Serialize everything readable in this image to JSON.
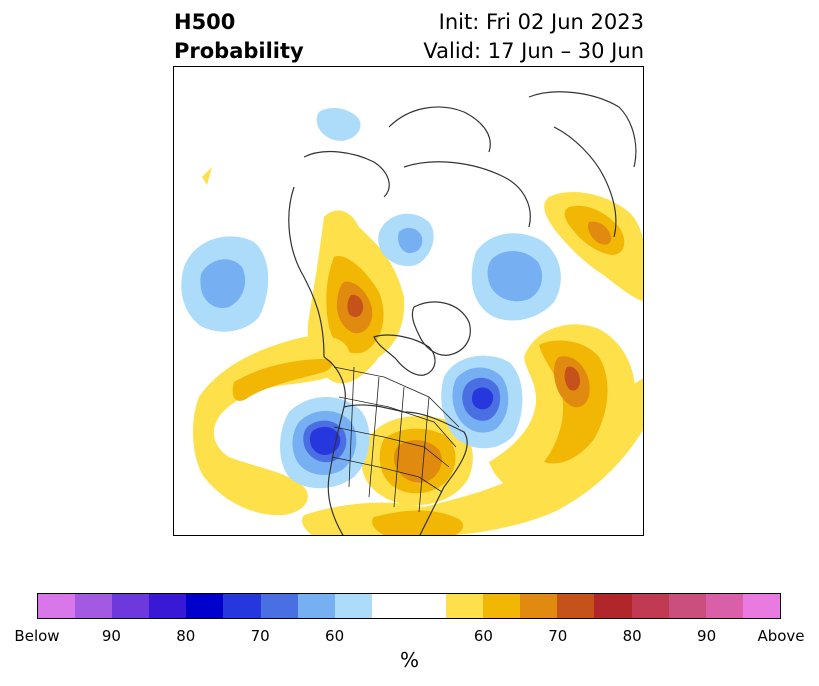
{
  "header": {
    "title_line1": "H500",
    "title_line2": "Probability",
    "init_text": "Init: Fri 02 Jun 2023",
    "valid_text": "Valid: 17 Jun – 30 Jun"
  },
  "map": {
    "projection": "north-polar-stereographic",
    "variable": "500 hPa height tercile probability",
    "anomalies": [
      {
        "sign": "above",
        "max_category": 70,
        "region": "Alaska / Yukon"
      },
      {
        "sign": "above",
        "max_category": 70,
        "region": "Great Lakes / Midwest US"
      },
      {
        "sign": "above",
        "max_category": 70,
        "region": "North Atlantic"
      },
      {
        "sign": "above",
        "max_category": 70,
        "region": "Eastern Siberia"
      },
      {
        "sign": "above",
        "max_category": 60,
        "region": "Western US / Mexico coast"
      },
      {
        "sign": "below",
        "max_category": 80,
        "region": "Northeast Pacific off California"
      },
      {
        "sign": "below",
        "max_category": 80,
        "region": "Labrador Sea / Greenland"
      },
      {
        "sign": "below",
        "max_category": 70,
        "region": "North Pacific (Bering)"
      },
      {
        "sign": "below",
        "max_category": 60,
        "region": "Kara Sea / Siberia"
      },
      {
        "sign": "below",
        "max_category": 60,
        "region": "Central Asia"
      },
      {
        "sign": "below",
        "max_category": 60,
        "region": "Arctic near Scandinavia"
      }
    ]
  },
  "colorbar": {
    "colors": [
      "#d977ea",
      "#a25ae2",
      "#6d38dc",
      "#3a19d6",
      "#0000cc",
      "#2537dd",
      "#4a6fe3",
      "#77b0f2",
      "#addcfb",
      "#ffffff",
      "#fee04a",
      "#f2b705",
      "#e08a10",
      "#c4521a",
      "#b1262a",
      "#c03a52",
      "#cb4f7d",
      "#d960a8",
      "#e97ae0"
    ],
    "tick_labels": [
      "Below",
      "90",
      "80",
      "70",
      "60",
      "60",
      "70",
      "80",
      "90",
      "Above"
    ],
    "unit_label": "%"
  }
}
